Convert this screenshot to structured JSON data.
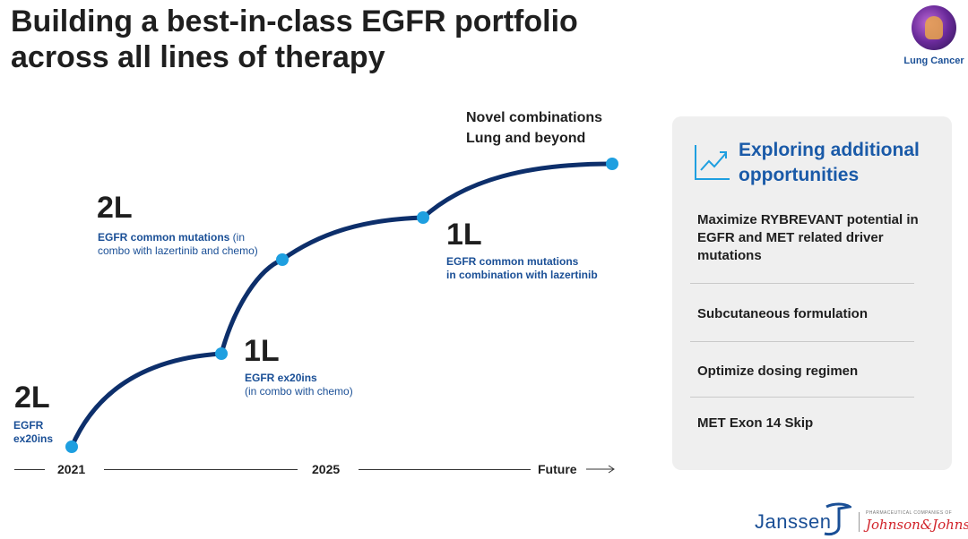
{
  "title": {
    "line1": "Building a best-in-class EGFR portfolio",
    "line2": "across all lines of therapy"
  },
  "badge": {
    "label": "Lung Cancer",
    "icon": "lung-icon"
  },
  "timeline": {
    "milestones": [
      {
        "line": "2L",
        "detail_bold": "EGFR",
        "detail_bold2": "ex20ins",
        "detail": ""
      },
      {
        "line": "1L",
        "detail_bold": "EGFR ex20ins",
        "detail": "(in combo with chemo)"
      },
      {
        "line": "2L",
        "detail_bold": "EGFR common mutations",
        "detail": " (in",
        "detail2": "combo with lazertinib and chemo)"
      },
      {
        "line": "1L",
        "detail_bold": "EGFR common mutations",
        "detail_bold2": "in combination with lazertinib"
      }
    ],
    "novel": {
      "line1": "Novel combinations",
      "line2": "Lung and beyond"
    },
    "axis": {
      "start": "2021",
      "mid": "2025",
      "end": "Future"
    },
    "colors": {
      "curve": "#0d2f6b",
      "dot": "#1e9fe0",
      "text_blue": "#1a4f96"
    }
  },
  "panel": {
    "title": "Exploring additional opportunities",
    "icon": "trend-up-icon",
    "items": [
      "Maximize RYBREVANT potential in EGFR and MET related driver mutations",
      "Subcutaneous formulation",
      "Optimize dosing regimen",
      "MET Exon 14 Skip"
    ]
  },
  "footer": {
    "company": "Janssen",
    "company_mark": "janssen-logo",
    "parent_small": "PHARMACEUTICAL COMPANIES OF",
    "parent": "Johnson&Johnson"
  }
}
